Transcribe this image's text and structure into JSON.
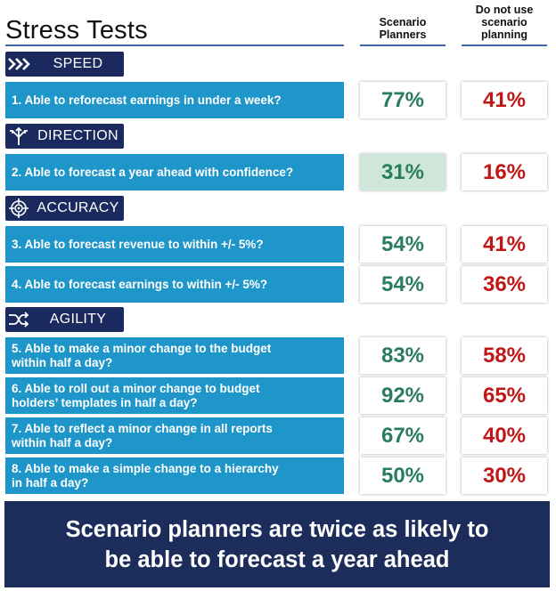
{
  "title": "Stress Tests",
  "columns": {
    "planners": [
      "Scenario",
      "Planners"
    ],
    "non_planners": [
      "Do not use",
      "scenario",
      "planning"
    ]
  },
  "colors": {
    "section_bg": "#1a2a5e",
    "question_bg": "#1f96c9",
    "green": "#2a7d5c",
    "red": "#c01616",
    "highlight": "#cfe6db",
    "banner_bg": "#1c2d5b"
  },
  "sections": [
    {
      "label": "SPEED",
      "icon": "fast-forward-chevrons-icon"
    },
    {
      "label": "DIRECTION",
      "icon": "crossroads-arrows-icon"
    },
    {
      "label": "ACCURACY",
      "icon": "target-crosshair-icon"
    },
    {
      "label": "AGILITY",
      "icon": "shuffle-arrows-icon"
    }
  ],
  "questions": [
    {
      "lines": [
        "1. Able to reforecast earnings in under a week?"
      ],
      "planners": "77%",
      "non_planners": "41%"
    },
    {
      "lines": [
        "2. Able to forecast a year ahead with confidence?"
      ],
      "planners": "31%",
      "non_planners": "16%"
    },
    {
      "lines": [
        "3. Able to forecast revenue to within +/- 5%?"
      ],
      "planners": "54%",
      "non_planners": "41%"
    },
    {
      "lines": [
        "4. Able to forecast earnings to within +/- 5%?"
      ],
      "planners": "54%",
      "non_planners": "36%"
    },
    {
      "lines": [
        "5. Able to make a minor change to the budget",
        "within half a day?"
      ],
      "planners": "83%",
      "non_planners": "58%"
    },
    {
      "lines": [
        "6. Able to roll out a minor change to budget",
        "holders’ templates in half a day?"
      ],
      "planners": "92%",
      "non_planners": "65%"
    },
    {
      "lines": [
        "7. Able to reflect a minor change in all reports",
        "within half a day?"
      ],
      "planners": "67%",
      "non_planners": "40%"
    },
    {
      "lines": [
        "8. Able to make a simple change to a hierarchy",
        "in half a day?"
      ],
      "planners": "50%",
      "non_planners": "30%"
    }
  ],
  "banner": [
    "Scenario planners are twice as likely to",
    "be able to forecast a year ahead"
  ]
}
